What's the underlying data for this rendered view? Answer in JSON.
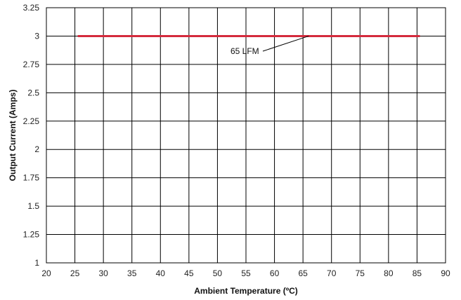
{
  "chart_data": {
    "type": "line",
    "title": "",
    "xlabel": "Ambient Temperature (ºC)",
    "ylabel": "Output Current (Amps)",
    "xlim": [
      20,
      90
    ],
    "ylim": [
      1,
      3.25
    ],
    "x_ticks": [
      "20",
      "25",
      "30",
      "35",
      "40",
      "45",
      "50",
      "55",
      "60",
      "65",
      "70",
      "75",
      "80",
      "85",
      "90"
    ],
    "y_ticks": [
      "1",
      "1.25",
      "1.5",
      "1.75",
      "2",
      "2.25",
      "2.5",
      "2.75",
      "3",
      "3.25"
    ],
    "grid": true,
    "series": [
      {
        "name": "65 LFM",
        "color": "#d42a3c",
        "x": [
          25.5,
          85.5
        ],
        "y": [
          3,
          3
        ]
      }
    ],
    "annotations": [
      {
        "text": "65 LFM",
        "points_to": [
          66,
          3
        ]
      }
    ]
  }
}
